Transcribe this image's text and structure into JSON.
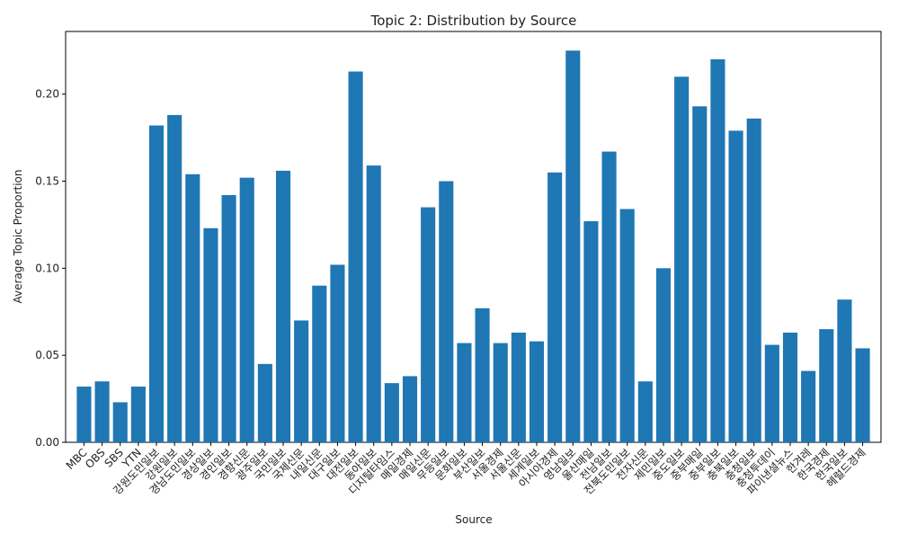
{
  "chart_data": {
    "type": "bar",
    "title": "Topic 2: Distribution by Source",
    "x_label": "Source",
    "y_label": "Average Topic Proportion",
    "categories": [
      "MBC",
      "OBS",
      "SBS",
      "YTN",
      "강원도민일보",
      "강원일보",
      "경남도민일보",
      "경상일보",
      "경인일보",
      "경향신문",
      "광주일보",
      "국민일보",
      "국제신문",
      "내일신문",
      "대구일보",
      "대전일보",
      "동아일보",
      "디지털타임스",
      "매일경제",
      "매일신문",
      "무등일보",
      "문화일보",
      "부산일보",
      "서울경제",
      "서울신문",
      "세계일보",
      "아시아경제",
      "영남일보",
      "울산매일",
      "전남일보",
      "전북도민일보",
      "전자신문",
      "제민일보",
      "중도일보",
      "중부매일",
      "중부일보",
      "충북일보",
      "충청일보",
      "충청투데이",
      "파이낸셜뉴스",
      "한겨레",
      "한국경제",
      "한국일보",
      "헤럴드경제"
    ],
    "values": [
      0.032,
      0.035,
      0.023,
      0.032,
      0.182,
      0.188,
      0.154,
      0.123,
      0.142,
      0.152,
      0.045,
      0.156,
      0.07,
      0.09,
      0.102,
      0.213,
      0.159,
      0.034,
      0.038,
      0.135,
      0.15,
      0.057,
      0.077,
      0.057,
      0.063,
      0.058,
      0.155,
      0.225,
      0.127,
      0.167,
      0.134,
      0.035,
      0.1,
      0.21,
      0.193,
      0.22,
      0.179,
      0.186,
      0.056,
      0.063,
      0.041,
      0.065,
      0.082,
      0.054
    ],
    "color": "#1f77b4",
    "ylim": [
      0,
      0.236
    ],
    "yticks": [
      {
        "value": 0,
        "label": "0.00"
      },
      0.05,
      {
        "value": 0.1,
        "label": "0.10"
      },
      0.15,
      {
        "value": 0.2,
        "label": "0.20"
      }
    ]
  }
}
